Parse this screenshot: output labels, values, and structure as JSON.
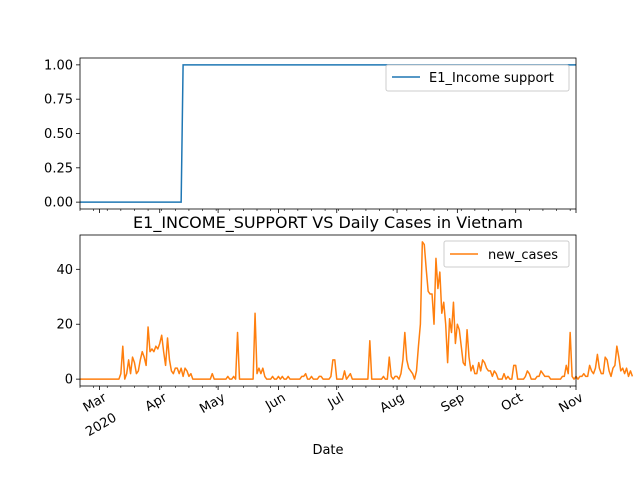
{
  "chart_data": [
    {
      "type": "line",
      "title": "",
      "xlabel": "",
      "ylabel": "",
      "xlim": [
        "2020-02-20",
        "2020-11-01"
      ],
      "ylim": [
        -0.05,
        1.05
      ],
      "yticks": [
        0.0,
        0.25,
        0.5,
        0.75,
        1.0
      ],
      "yticklabels": [
        "0.00",
        "0.25",
        "0.50",
        "0.75",
        "1.00"
      ],
      "legend_position": "top-right",
      "series": [
        {
          "name": "E1_Income support",
          "color": "#1f77b4",
          "points": [
            [
              "2020-02-20",
              0
            ],
            [
              "2020-04-12",
              0
            ],
            [
              "2020-04-13",
              1
            ],
            [
              "2020-11-01",
              1
            ]
          ]
        }
      ]
    },
    {
      "type": "line",
      "title": "E1_INCOME_SUPPORT VS Daily Cases in Vietnam",
      "xlabel": "Date",
      "ylabel": "",
      "xlim": [
        "2020-02-20",
        "2020-11-01"
      ],
      "ylim": [
        -2.5,
        52.5
      ],
      "yticks": [
        0,
        20,
        40
      ],
      "yticklabels": [
        "0",
        "20",
        "40"
      ],
      "xticks": [
        "2020-03-01",
        "2020-04-01",
        "2020-05-01",
        "2020-06-01",
        "2020-07-01",
        "2020-08-01",
        "2020-09-01",
        "2020-10-01",
        "2020-11-01"
      ],
      "xticklabels": [
        "Mar",
        "Apr",
        "May",
        "Jun",
        "Jul",
        "Aug",
        "Sep",
        "Oct",
        "Nov"
      ],
      "xticklabel_year": "2020",
      "legend_position": "top-right",
      "series": [
        {
          "name": "new_cases",
          "color": "#ff7f0e",
          "start_date": "2020-02-20",
          "values": [
            0,
            0,
            0,
            0,
            0,
            0,
            0,
            0,
            0,
            0,
            0,
            0,
            0,
            0,
            0,
            0,
            0,
            0,
            0,
            0,
            0,
            2,
            12,
            0,
            2,
            7,
            2,
            8,
            6,
            2,
            3,
            7,
            10,
            8,
            5,
            19,
            10,
            11,
            10,
            12,
            11,
            13,
            16,
            10,
            5,
            15,
            7,
            3,
            2,
            4,
            4,
            2,
            4,
            1,
            4,
            3,
            1,
            2,
            0,
            0,
            0,
            0,
            0,
            0,
            0,
            0,
            0,
            0,
            2,
            0,
            0,
            0,
            0,
            0,
            0,
            0,
            1,
            0,
            0,
            1,
            0,
            17,
            0,
            0,
            0,
            0,
            0,
            0,
            0,
            0,
            24,
            2,
            4,
            2,
            4,
            1,
            0,
            0,
            0,
            1,
            0,
            0,
            1,
            0,
            1,
            0,
            0,
            1,
            0,
            0,
            0,
            0,
            0,
            0,
            1,
            1,
            2,
            0,
            0,
            1,
            0,
            0,
            0,
            1,
            1,
            0,
            0,
            0,
            0,
            1,
            7,
            7,
            0,
            0,
            0,
            0,
            3,
            0,
            1,
            2,
            0,
            0,
            0,
            0,
            0,
            0,
            0,
            0,
            0,
            14,
            0,
            0,
            0,
            0,
            0,
            0,
            1,
            0,
            0,
            8,
            1,
            0,
            1,
            1,
            0,
            2,
            7,
            17,
            7,
            4,
            3,
            2,
            0,
            3,
            12,
            20,
            50,
            49,
            40,
            32,
            31,
            31,
            20,
            44,
            33,
            39,
            24,
            28,
            20,
            6,
            22,
            17,
            28,
            13,
            20,
            18,
            12,
            6,
            5,
            18,
            8,
            3,
            5,
            2,
            2,
            6,
            3,
            7,
            6,
            4,
            3,
            3,
            1,
            3,
            2,
            0,
            0,
            0,
            2,
            0,
            1,
            0,
            0,
            5,
            5,
            0,
            0,
            0,
            0,
            1,
            3,
            2,
            0,
            0,
            0,
            1,
            1,
            3,
            2,
            1,
            1,
            1,
            0,
            0,
            0,
            0,
            0,
            0,
            1,
            1,
            5,
            2,
            17,
            1,
            0,
            1,
            0,
            1,
            1,
            2,
            1,
            1,
            5,
            3,
            2,
            4,
            9,
            4,
            2,
            2,
            8,
            7,
            3,
            1,
            4,
            5,
            12,
            8,
            3,
            4,
            2,
            4,
            1,
            3,
            1
          ]
        }
      ]
    }
  ]
}
